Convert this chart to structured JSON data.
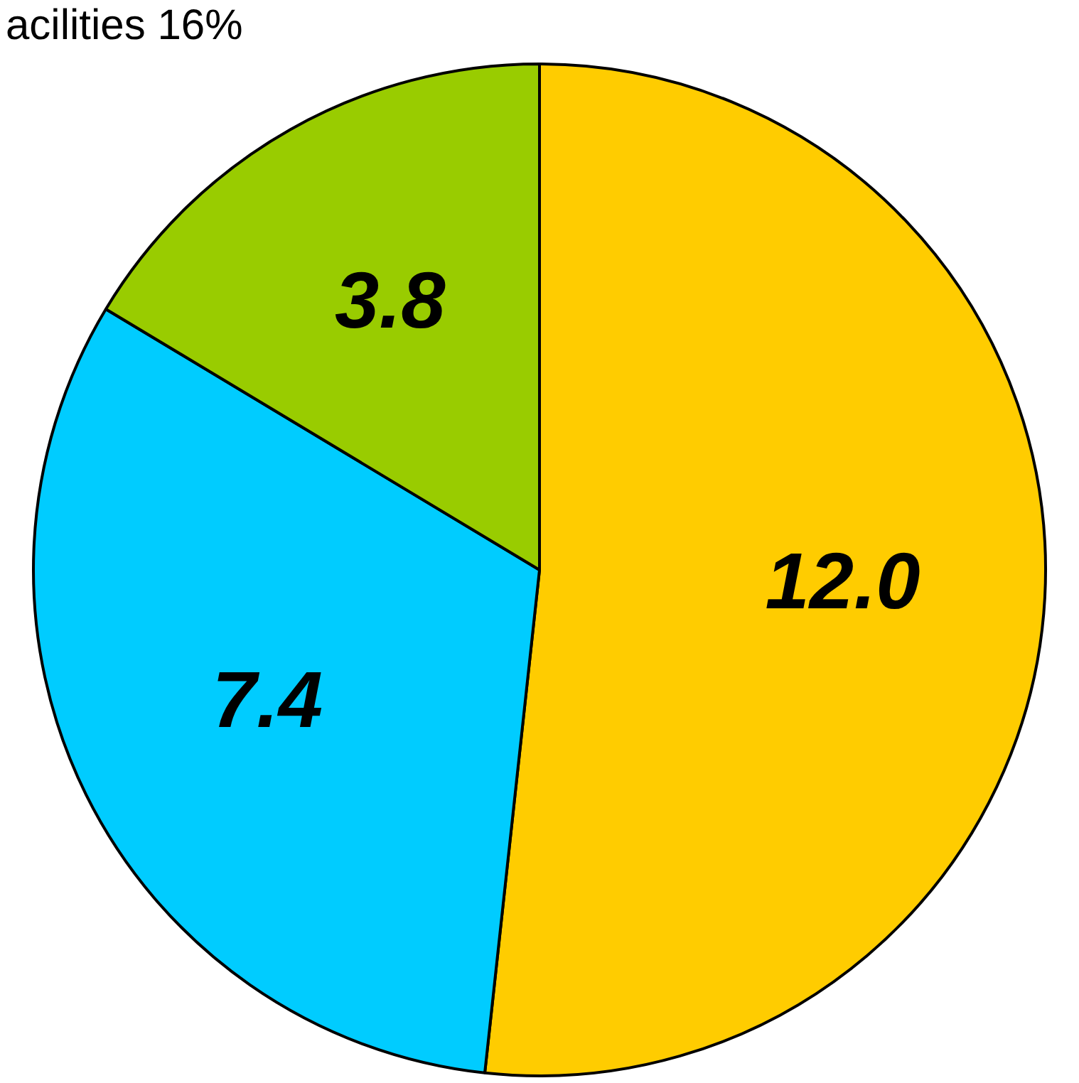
{
  "chart_data": {
    "type": "pie",
    "categories": [
      null,
      null,
      null
    ],
    "values": [
      12.0,
      7.4,
      3.8
    ],
    "colors": [
      "#ffcc00",
      "#00ccff",
      "#99cc00"
    ],
    "value_labels": [
      "12.0",
      "7.4",
      "3.8"
    ],
    "annotations": [
      "acilities 16%"
    ],
    "legend": false
  }
}
